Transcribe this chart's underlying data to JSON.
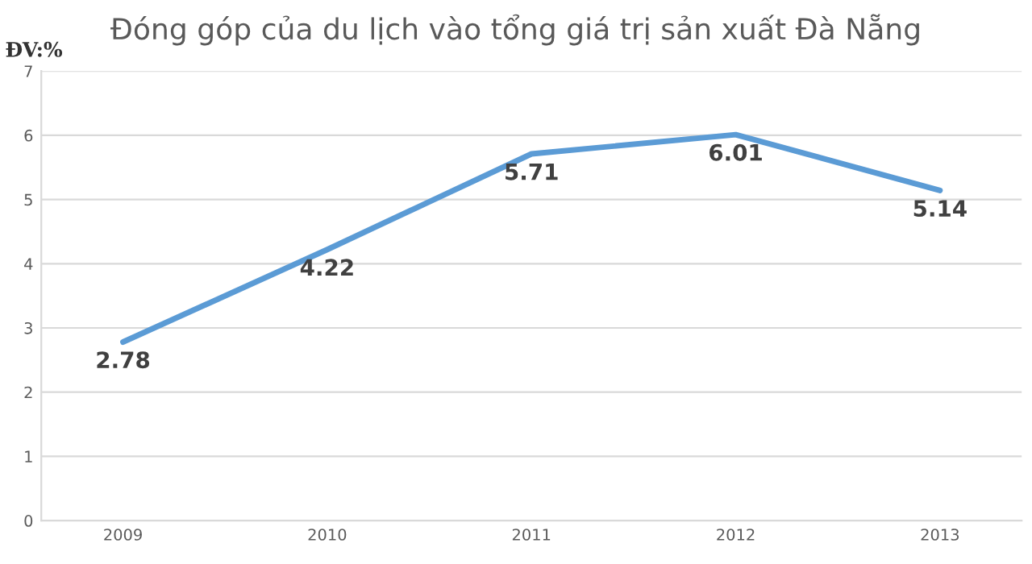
{
  "chart_data": {
    "type": "line",
    "title": "Đóng góp của du lịch vào tổng giá trị sản xuất Đà Nẵng",
    "ylabel": "ĐV:%",
    "categories": [
      "2009",
      "2010",
      "2011",
      "2012",
      "2013"
    ],
    "series": [
      {
        "color": "#5b9bd5",
        "values": [
          2.78,
          4.22,
          5.71,
          6.01,
          5.14
        ]
      }
    ],
    "ylim": [
      0,
      7
    ],
    "yticks": [
      0,
      1,
      2,
      3,
      4,
      5,
      6,
      7
    ],
    "grid": "y",
    "data_labels": true,
    "marker": "none",
    "line_style": "solid",
    "legend": false
  }
}
